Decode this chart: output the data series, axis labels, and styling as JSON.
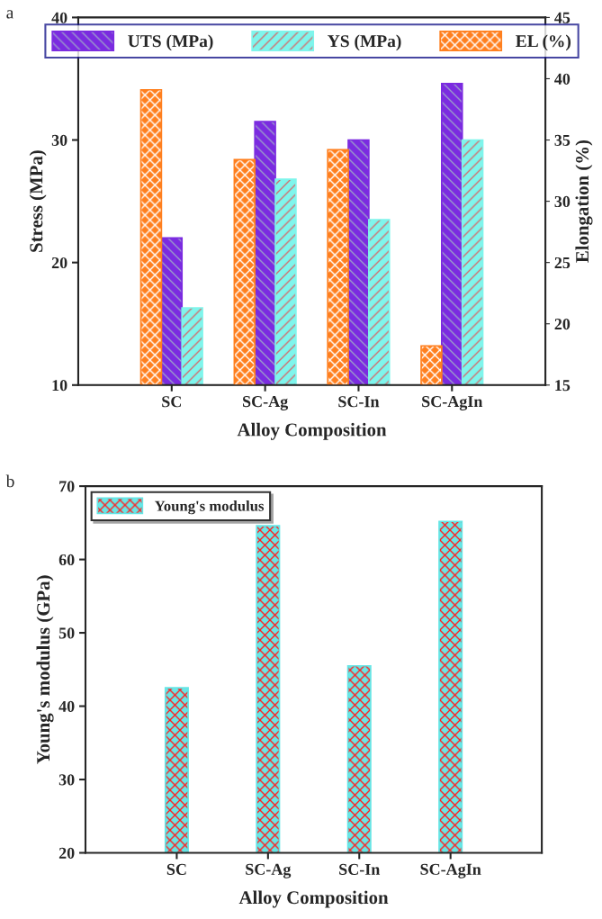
{
  "chart_data": [
    {
      "type": "bar",
      "annotations": [
        "a"
      ],
      "xlabel": "Alloy Composition",
      "ylabel": "Stress (MPa)",
      "y2label": "Elongation (%)",
      "categories": [
        "SC",
        "SC-Ag",
        "SC-In",
        "SC-AgIn"
      ],
      "series": [
        {
          "name": "UTS (MPa)",
          "color": "#7b2be0",
          "values": [
            22.0,
            31.5,
            30.0,
            34.6
          ]
        },
        {
          "name": "YS (MPa)",
          "color": "#7ff5ec",
          "values": [
            16.3,
            26.8,
            23.5,
            30.0
          ]
        },
        {
          "name": "EL (%)",
          "color": "#ff7f1e",
          "axis": "y2",
          "values": [
            39.1,
            33.4,
            34.2,
            18.2
          ]
        }
      ],
      "ylim": [
        10,
        40
      ],
      "yticks": [
        10,
        20,
        30,
        40
      ],
      "y2lim": [
        15,
        45
      ],
      "y2ticks": [
        15,
        20,
        25,
        30,
        35,
        40,
        45
      ],
      "legend": "top",
      "grid": false
    },
    {
      "type": "bar",
      "annotations": [
        "b"
      ],
      "xlabel": "Alloy Composition",
      "ylabel": "Young's modulus (GPa)",
      "categories": [
        "SC",
        "SC-Ag",
        "SC-In",
        "SC-AgIn"
      ],
      "series": [
        {
          "name": "Young's modulus",
          "color": "#66e6e6",
          "values": [
            42.5,
            64.6,
            45.5,
            65.2
          ]
        }
      ],
      "ylim": [
        20,
        70
      ],
      "yticks": [
        20,
        30,
        40,
        50,
        60,
        70
      ],
      "legend": "top left",
      "grid": false
    }
  ]
}
